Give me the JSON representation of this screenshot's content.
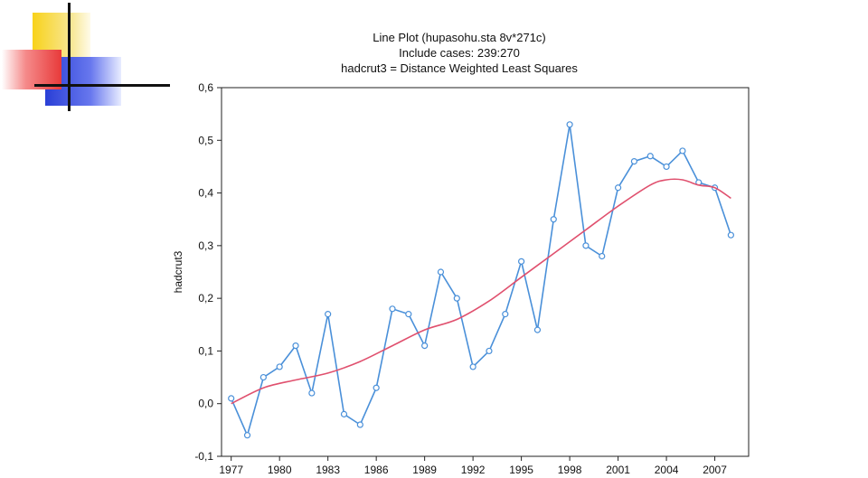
{
  "chart_data": {
    "type": "line",
    "title": [
      "Line Plot (hupasohu.sta 8v*271c)",
      "Include cases: 239:270",
      "hadcrut3 = Distance Weighted Least Squares"
    ],
    "xlabel": "",
    "ylabel": "hadcrut3",
    "xlim": [
      1976.4,
      2009.1
    ],
    "ylim": [
      -0.1,
      0.6
    ],
    "x_ticks": [
      1977,
      1980,
      1983,
      1986,
      1989,
      1992,
      1995,
      1998,
      2001,
      2004,
      2007
    ],
    "y_ticks": [
      -0.1,
      0.0,
      0.1,
      0.2,
      0.3,
      0.4,
      0.5,
      0.6
    ],
    "y_tick_labels": [
      "-0,1",
      "0,0",
      "0,1",
      "0,2",
      "0,3",
      "0,4",
      "0,5",
      "0,6"
    ],
    "grid": false,
    "series": [
      {
        "color": "#4a90d9",
        "markers": true,
        "x": [
          1977,
          1978,
          1979,
          1980,
          1981,
          1982,
          1983,
          1984,
          1985,
          1986,
          1987,
          1988,
          1989,
          1990,
          1991,
          1992,
          1993,
          1994,
          1995,
          1996,
          1997,
          1998,
          1999,
          2000,
          2001,
          2002,
          2003,
          2004,
          2005,
          2006,
          2007,
          2008
        ],
        "y": [
          0.01,
          -0.06,
          0.05,
          0.07,
          0.11,
          0.02,
          0.17,
          -0.02,
          -0.04,
          0.03,
          0.18,
          0.17,
          0.11,
          0.25,
          0.2,
          0.07,
          0.1,
          0.17,
          0.27,
          0.14,
          0.35,
          0.53,
          0.3,
          0.28,
          0.41,
          0.46,
          0.47,
          0.45,
          0.48,
          0.42,
          0.41,
          0.32
        ]
      },
      {
        "color": "#e0506e",
        "markers": false,
        "x": [
          1977,
          1979,
          1981,
          1983,
          1985,
          1987,
          1989,
          1991,
          1993,
          1995,
          1997,
          1999,
          2001,
          2003,
          2004,
          2005,
          2006,
          2007,
          2008
        ],
        "y": [
          0.0,
          0.03,
          0.045,
          0.058,
          0.08,
          0.11,
          0.14,
          0.16,
          0.195,
          0.24,
          0.285,
          0.33,
          0.375,
          0.415,
          0.425,
          0.425,
          0.415,
          0.41,
          0.39
        ]
      }
    ]
  }
}
